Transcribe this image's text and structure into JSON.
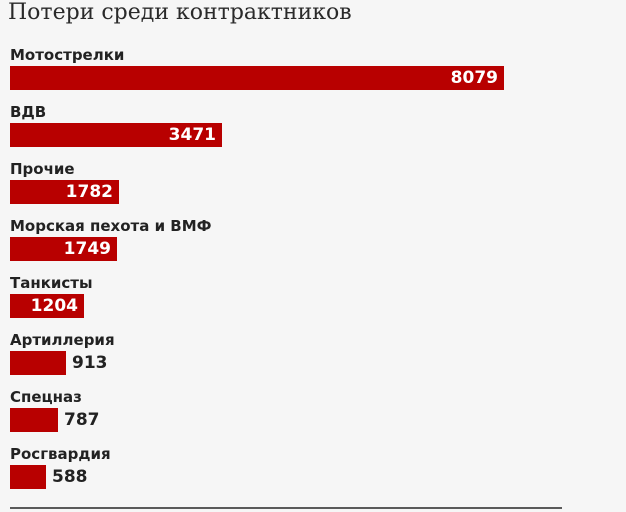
{
  "chart_data": {
    "type": "bar",
    "orientation": "horizontal",
    "title": "Потери среди контрактников",
    "categories": [
      "Мотострелки",
      "ВДВ",
      "Прочие",
      "Морская пехота и ВМФ",
      "Танкисты",
      "Артиллерия",
      "Спецназ",
      "Росгвардия"
    ],
    "values": [
      8079,
      3471,
      1782,
      1749,
      1204,
      913,
      787,
      588
    ],
    "value_labels": [
      "8079",
      "3471",
      "1782",
      "1749",
      "1204",
      "913",
      "787",
      "588"
    ],
    "xlim": [
      0,
      8079
    ],
    "grid": false,
    "legend": "none"
  },
  "colors": {
    "bar": "#b80000",
    "value_inside": "#ffffff",
    "value_outside": "#222222",
    "background": "#f6f6f6",
    "baseline": "#5a5a5a"
  }
}
